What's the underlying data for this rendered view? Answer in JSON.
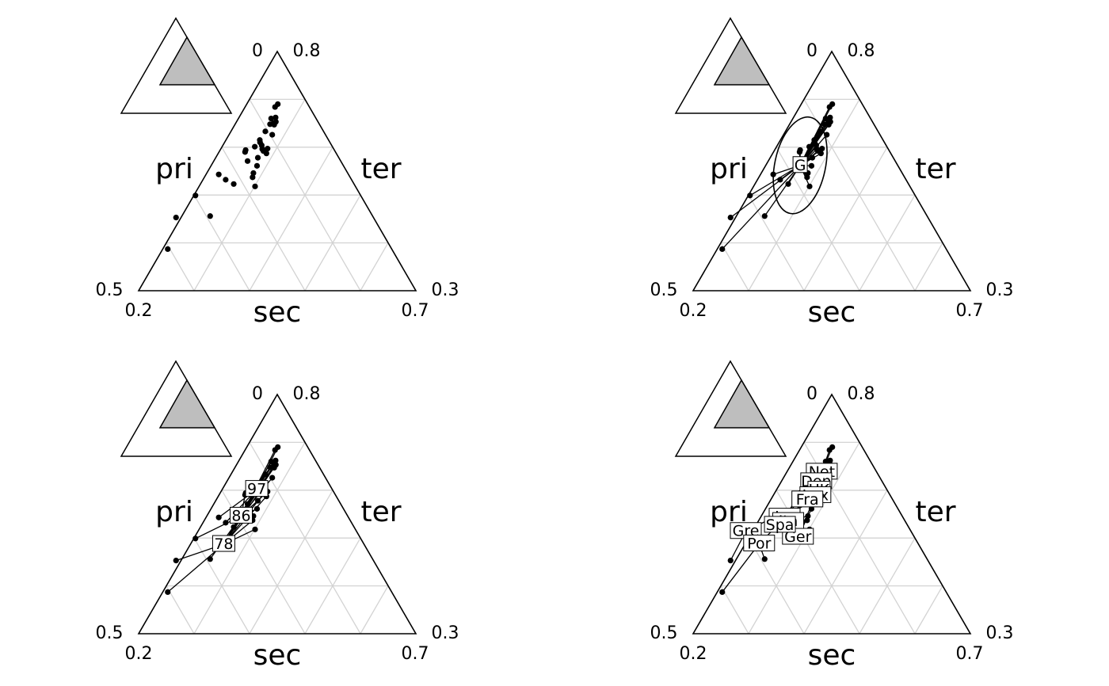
{
  "chart_data": [
    {
      "type": "scatter",
      "panel": "top-left",
      "axes": {
        "left": "pri",
        "right": "ter",
        "bottom": "sec"
      },
      "corner_ticks": {
        "top_left": "0",
        "top_right": "0.8",
        "left_top": "0.5",
        "left_bottom": "0.2",
        "right_top": "0.3",
        "right_bottom": "0.7"
      },
      "grid": true,
      "overview_triangle": true,
      "groups": [],
      "labels": [],
      "show_ellipse": false,
      "center_label": null
    },
    {
      "type": "scatter",
      "panel": "top-right",
      "axes": {
        "left": "pri",
        "right": "ter",
        "bottom": "sec"
      },
      "corner_ticks": {
        "top_left": "0",
        "top_right": "0.8",
        "left_top": "0.5",
        "left_bottom": "0.2",
        "right_top": "0.3",
        "right_bottom": "0.7"
      },
      "grid": true,
      "overview_triangle": true,
      "groups": [],
      "labels": [],
      "show_ellipse": true,
      "center_label": "G"
    },
    {
      "type": "scatter",
      "panel": "bottom-left",
      "axes": {
        "left": "pri",
        "right": "ter",
        "bottom": "sec"
      },
      "corner_ticks": {
        "top_left": "0",
        "top_right": "0.8",
        "left_top": "0.5",
        "left_bottom": "0.2",
        "right_top": "0.3",
        "right_bottom": "0.7"
      },
      "grid": true,
      "overview_triangle": true,
      "groups": [
        {
          "name": "97",
          "center": [
            0.262,
            0.136,
            0.602
          ]
        },
        {
          "name": "86",
          "center": [
            0.262,
            0.192,
            0.546
          ]
        },
        {
          "name": "78",
          "center": [
            0.26,
            0.253,
            0.487
          ]
        }
      ],
      "labels": [],
      "show_ellipse": false,
      "center_label": null
    },
    {
      "type": "scatter",
      "panel": "bottom-right",
      "axes": {
        "left": "pri",
        "right": "ter",
        "bottom": "sec"
      },
      "corner_ticks": {
        "top_left": "0",
        "top_right": "0.8",
        "left_top": "0.5",
        "left_bottom": "0.2",
        "right_top": "0.3",
        "right_bottom": "0.7"
      },
      "grid": true,
      "overview_triangle": true,
      "groups": [
        {
          "name": "Net",
          "center": [
            0.263,
            0.099,
            0.638
          ]
        },
        {
          "name": "Den",
          "center": [
            0.263,
            0.119,
            0.618
          ]
        },
        {
          "name": "UK",
          "center": [
            0.277,
            0.123,
            0.601
          ]
        },
        {
          "name": "Lux",
          "center": [
            0.276,
            0.135,
            0.589
          ]
        },
        {
          "name": "Fra",
          "center": [
            0.266,
            0.154,
            0.58
          ]
        },
        {
          "name": "Ger",
          "center": [
            0.288,
            0.21,
            0.502
          ]
        },
        {
          "name": "Ire",
          "center": [
            0.243,
            0.213,
            0.544
          ]
        },
        {
          "name": "Ita",
          "center": [
            0.254,
            0.211,
            0.535
          ]
        },
        {
          "name": "Spa",
          "center": [
            0.243,
            0.23,
            0.527
          ]
        },
        {
          "name": "Gre",
          "center": [
            0.188,
            0.298,
            0.514
          ]
        },
        {
          "name": "Por",
          "center": [
            0.225,
            0.287,
            0.488
          ]
        }
      ],
      "labels": [],
      "show_ellipse": false,
      "center_label": null
    }
  ],
  "points": [
    {
      "id": "Net-97",
      "group_year": "97",
      "group_country": "Net",
      "pri": 0.256,
      "sec": 0.054,
      "ter": 0.69
    },
    {
      "id": "Net-86",
      "group_year": "86",
      "group_country": "Net",
      "pri": 0.254,
      "sec": 0.062,
      "ter": 0.684
    },
    {
      "id": "Net-78",
      "group_year": "78",
      "group_country": "Net",
      "pri": 0.259,
      "sec": 0.081,
      "ter": 0.66
    },
    {
      "id": "Den-97",
      "group_year": "97",
      "group_country": "Den",
      "pri": 0.266,
      "sec": 0.072,
      "ter": 0.662
    },
    {
      "id": "Den-86",
      "group_year": "86",
      "group_country": "Den",
      "pri": 0.271,
      "sec": 0.076,
      "ter": 0.653
    },
    {
      "id": "Den-78",
      "group_year": "78",
      "group_country": "Den",
      "pri": 0.268,
      "sec": 0.082,
      "ter": 0.65
    },
    {
      "id": "UK-97",
      "group_year": "97",
      "group_country": "UK",
      "pri": 0.271,
      "sec": 0.082,
      "ter": 0.647
    },
    {
      "id": "UK-86",
      "group_year": "86",
      "group_country": "UK",
      "pri": 0.278,
      "sec": 0.096,
      "ter": 0.626
    },
    {
      "id": "UK-78",
      "group_year": "78",
      "group_country": "UK",
      "pri": 0.27,
      "sec": 0.126,
      "ter": 0.604
    },
    {
      "id": "Lux-97",
      "group_year": "97",
      "group_country": "Lux",
      "pri": 0.263,
      "sec": 0.089,
      "ter": 0.648
    },
    {
      "id": "Lux-86",
      "group_year": "86",
      "group_country": "Lux",
      "pri": 0.284,
      "sec": 0.119,
      "ter": 0.597
    },
    {
      "id": "Lux-78",
      "group_year": "78",
      "group_country": "Lux",
      "pri": 0.287,
      "sec": 0.126,
      "ter": 0.587
    },
    {
      "id": "Fra-97",
      "group_year": "97",
      "group_country": "Fra",
      "pri": 0.262,
      "sec": 0.105,
      "ter": 0.633
    },
    {
      "id": "Fra-86",
      "group_year": "86",
      "group_country": "Fra",
      "pri": 0.261,
      "sec": 0.124,
      "ter": 0.615
    },
    {
      "id": "Fra-78",
      "group_year": "78",
      "group_country": "Fra",
      "pri": 0.264,
      "sec": 0.126,
      "ter": 0.61
    },
    {
      "id": "Ger-97",
      "group_year": "97",
      "group_country": "Ger",
      "pri": 0.275,
      "sec": 0.129,
      "ter": 0.596
    },
    {
      "id": "Ger-86",
      "group_year": "86",
      "group_country": "Ger",
      "pri": 0.283,
      "sec": 0.156,
      "ter": 0.561
    },
    {
      "id": "Ger-78",
      "group_year": "78",
      "group_country": "Ger",
      "pri": 0.301,
      "sec": 0.181,
      "ter": 0.518
    },
    {
      "id": "Ire-97",
      "group_year": "97",
      "group_country": "Ire",
      "pri": 0.259,
      "sec": 0.14,
      "ter": 0.601
    },
    {
      "id": "Ire-86",
      "group_year": "86",
      "group_country": "Ire",
      "pri": 0.276,
      "sec": 0.146,
      "ter": 0.578
    },
    {
      "id": "Ire-78",
      "group_year": "78",
      "group_country": "Ire",
      "pri": 0.279,
      "sec": 0.129,
      "ter": 0.592
    },
    {
      "id": "Ita-97",
      "group_year": "97",
      "group_country": "Ita",
      "pri": 0.261,
      "sec": 0.168,
      "ter": 0.571
    },
    {
      "id": "Ita-86",
      "group_year": "86",
      "group_country": "Ita",
      "pri": 0.284,
      "sec": 0.17,
      "ter": 0.546
    },
    {
      "id": "Ita-78",
      "group_year": "78",
      "group_country": "Ita",
      "pri": 0.287,
      "sec": 0.176,
      "ter": 0.537
    },
    {
      "id": "Spa-97",
      "group_year": "97",
      "group_country": "Spa",
      "pri": 0.246,
      "sec": 0.16,
      "ter": 0.594
    },
    {
      "id": "Spa-86",
      "group_year": "86",
      "group_country": "Spa",
      "pri": 0.247,
      "sec": 0.163,
      "ter": 0.59
    },
    {
      "id": "Spa-78",
      "group_year": "78",
      "group_country": "Spa",
      "pri": 0.26,
      "sec": 0.217,
      "ter": 0.523
    },
    {
      "id": "Gre-97",
      "group_year": "97",
      "group_country": "Gre",
      "pri": 0.223,
      "sec": 0.234,
      "ter": 0.543
    },
    {
      "id": "Gre-86",
      "group_year": "86",
      "group_country": "Gre",
      "pri": 0.203,
      "sec": 0.298,
      "ter": 0.499
    },
    {
      "id": "Gre-78",
      "group_year": "78",
      "group_country": "Gre",
      "pri": 0.191,
      "sec": 0.356,
      "ter": 0.453
    },
    {
      "id": "Por-97",
      "group_year": "97",
      "group_country": "Por",
      "pri": 0.241,
      "sec": 0.227,
      "ter": 0.532
    },
    {
      "id": "Por-86",
      "group_year": "86",
      "group_country": "Por",
      "pri": 0.251,
      "sec": 0.293,
      "ter": 0.456
    },
    {
      "id": "Por-78",
      "group_year": "78",
      "group_country": "Por",
      "pri": 0.209,
      "sec": 0.404,
      "ter": 0.387
    }
  ],
  "ellipse": {
    "center": [
      0.262,
      0.176,
      0.562
    ],
    "rx_sec": 0.07,
    "ry_sec": 0.14,
    "tilt_deg": 12
  }
}
